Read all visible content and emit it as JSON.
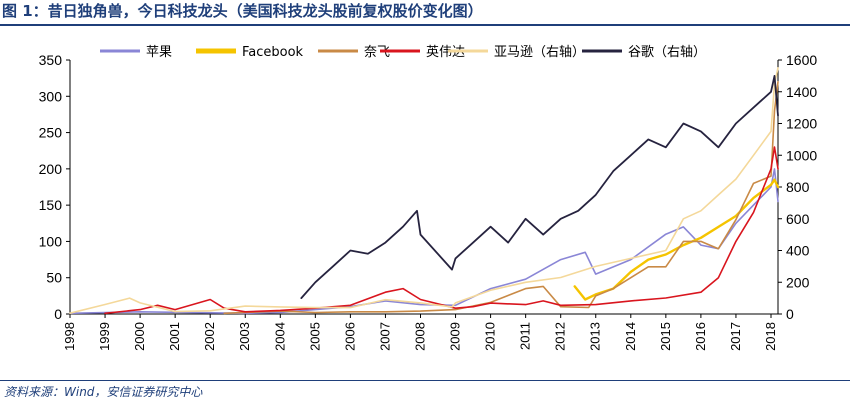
{
  "figure": {
    "title": "图 1：昔日独角兽，今日科技龙头（美国科技龙头股前复权股价变化图）",
    "source": "资料来源：Wind，安信证券研究中心"
  },
  "chart_data": {
    "type": "line",
    "title": "美国科技龙头股前复权股价变化图",
    "x_ticks": [
      "1998",
      "1999",
      "2000",
      "2001",
      "2002",
      "2003",
      "2004",
      "2005",
      "2006",
      "2007",
      "2008",
      "2009",
      "2010",
      "2011",
      "2012",
      "2013",
      "2014",
      "2015",
      "2016",
      "2017",
      "2018"
    ],
    "xlim": [
      1998,
      2018.2
    ],
    "left_axis": {
      "ylim": [
        0,
        350
      ],
      "ticks": [
        0,
        50,
        100,
        150,
        200,
        250,
        300,
        350
      ]
    },
    "right_axis": {
      "ylim": [
        0,
        1600
      ],
      "ticks": [
        0,
        200,
        400,
        600,
        800,
        1000,
        1200,
        1400,
        1600
      ]
    },
    "legend_location": "top",
    "series": [
      {
        "name": "苹果",
        "axis": "left",
        "color": "#8a86d6",
        "width": 1.6,
        "points": [
          [
            1998,
            1
          ],
          [
            2000,
            3
          ],
          [
            2003,
            1
          ],
          [
            2004,
            2
          ],
          [
            2005,
            6
          ],
          [
            2006,
            10
          ],
          [
            2007,
            18
          ],
          [
            2008,
            13
          ],
          [
            2009,
            12
          ],
          [
            2010,
            35
          ],
          [
            2011,
            48
          ],
          [
            2012,
            75
          ],
          [
            2012.7,
            85
          ],
          [
            2013,
            55
          ],
          [
            2014,
            75
          ],
          [
            2015,
            110
          ],
          [
            2015.5,
            120
          ],
          [
            2016,
            95
          ],
          [
            2016.5,
            90
          ],
          [
            2017,
            125
          ],
          [
            2017.5,
            150
          ],
          [
            2018,
            175
          ],
          [
            2018.1,
            200
          ],
          [
            2018.2,
            155
          ]
        ]
      },
      {
        "name": "Facebook",
        "axis": "left",
        "color": "#f5c400",
        "width": 2.4,
        "points": [
          [
            2012.4,
            38
          ],
          [
            2012.7,
            20
          ],
          [
            2013,
            27
          ],
          [
            2013.5,
            35
          ],
          [
            2014,
            58
          ],
          [
            2014.5,
            75
          ],
          [
            2015,
            82
          ],
          [
            2015.5,
            95
          ],
          [
            2016,
            105
          ],
          [
            2016.5,
            120
          ],
          [
            2017,
            135
          ],
          [
            2017.5,
            160
          ],
          [
            2018,
            178
          ],
          [
            2018.1,
            185
          ],
          [
            2018.2,
            175
          ]
        ]
      },
      {
        "name": "奈飞",
        "axis": "left",
        "color": "#c98a46",
        "width": 1.6,
        "points": [
          [
            2002.4,
            1
          ],
          [
            2004,
            4
          ],
          [
            2005,
            2
          ],
          [
            2006,
            3
          ],
          [
            2007,
            3
          ],
          [
            2008,
            4
          ],
          [
            2009,
            6
          ],
          [
            2010,
            16
          ],
          [
            2011,
            35
          ],
          [
            2011.5,
            38
          ],
          [
            2012,
            10
          ],
          [
            2012.8,
            9
          ],
          [
            2013,
            25
          ],
          [
            2013.5,
            35
          ],
          [
            2014,
            50
          ],
          [
            2014.5,
            65
          ],
          [
            2015,
            65
          ],
          [
            2015.5,
            100
          ],
          [
            2016,
            100
          ],
          [
            2016.5,
            90
          ],
          [
            2017,
            130
          ],
          [
            2017.5,
            180
          ],
          [
            2018,
            190
          ],
          [
            2018.1,
            280
          ],
          [
            2018.2,
            320
          ]
        ]
      },
      {
        "name": "英伟达",
        "axis": "left",
        "color": "#d9151e",
        "width": 1.6,
        "points": [
          [
            1999,
            1
          ],
          [
            2000,
            6
          ],
          [
            2000.5,
            12
          ],
          [
            2001,
            6
          ],
          [
            2002,
            20
          ],
          [
            2002.4,
            8
          ],
          [
            2003,
            3
          ],
          [
            2004,
            5
          ],
          [
            2005,
            8
          ],
          [
            2006,
            12
          ],
          [
            2007,
            30
          ],
          [
            2007.5,
            35
          ],
          [
            2008,
            20
          ],
          [
            2009,
            8
          ],
          [
            2009.5,
            10
          ],
          [
            2010,
            15
          ],
          [
            2011,
            13
          ],
          [
            2011.5,
            18
          ],
          [
            2012,
            12
          ],
          [
            2013,
            13
          ],
          [
            2014,
            18
          ],
          [
            2015,
            22
          ],
          [
            2016,
            30
          ],
          [
            2016.5,
            50
          ],
          [
            2017,
            100
          ],
          [
            2017.5,
            140
          ],
          [
            2018,
            200
          ],
          [
            2018.1,
            230
          ],
          [
            2018.2,
            200
          ]
        ]
      },
      {
        "name": "亚马逊（右轴）",
        "axis": "right",
        "color": "#f4d89a",
        "width": 1.6,
        "points": [
          [
            1998,
            5
          ],
          [
            1999,
            60
          ],
          [
            1999.7,
            100
          ],
          [
            2000,
            70
          ],
          [
            2001,
            15
          ],
          [
            2002,
            20
          ],
          [
            2003,
            50
          ],
          [
            2004,
            45
          ],
          [
            2005,
            40
          ],
          [
            2006,
            40
          ],
          [
            2007,
            90
          ],
          [
            2008,
            70
          ],
          [
            2008.9,
            45
          ],
          [
            2009,
            70
          ],
          [
            2010,
            150
          ],
          [
            2011,
            200
          ],
          [
            2012,
            230
          ],
          [
            2013,
            300
          ],
          [
            2014,
            350
          ],
          [
            2015,
            400
          ],
          [
            2015.5,
            600
          ],
          [
            2016,
            650
          ],
          [
            2016.5,
            750
          ],
          [
            2017,
            850
          ],
          [
            2017.5,
            1000
          ],
          [
            2018,
            1150
          ],
          [
            2018.1,
            1450
          ],
          [
            2018.2,
            1550
          ]
        ]
      },
      {
        "name": "谷歌（右轴）",
        "axis": "right",
        "color": "#26233f",
        "width": 1.8,
        "points": [
          [
            2004.6,
            100
          ],
          [
            2005,
            200
          ],
          [
            2005.5,
            300
          ],
          [
            2006,
            400
          ],
          [
            2006.5,
            380
          ],
          [
            2007,
            450
          ],
          [
            2007.5,
            550
          ],
          [
            2007.9,
            650
          ],
          [
            2008,
            500
          ],
          [
            2008.9,
            280
          ],
          [
            2009,
            350
          ],
          [
            2009.5,
            450
          ],
          [
            2010,
            550
          ],
          [
            2010.5,
            450
          ],
          [
            2011,
            600
          ],
          [
            2011.5,
            500
          ],
          [
            2012,
            600
          ],
          [
            2012.5,
            650
          ],
          [
            2013,
            750
          ],
          [
            2013.5,
            900
          ],
          [
            2014,
            1000
          ],
          [
            2014.5,
            1100
          ],
          [
            2015,
            1050
          ],
          [
            2015.5,
            1200
          ],
          [
            2016,
            1150
          ],
          [
            2016.5,
            1050
          ],
          [
            2017,
            1200
          ],
          [
            2017.5,
            1300
          ],
          [
            2018,
            1400
          ],
          [
            2018.1,
            1500
          ],
          [
            2018.2,
            1250
          ]
        ]
      }
    ]
  }
}
